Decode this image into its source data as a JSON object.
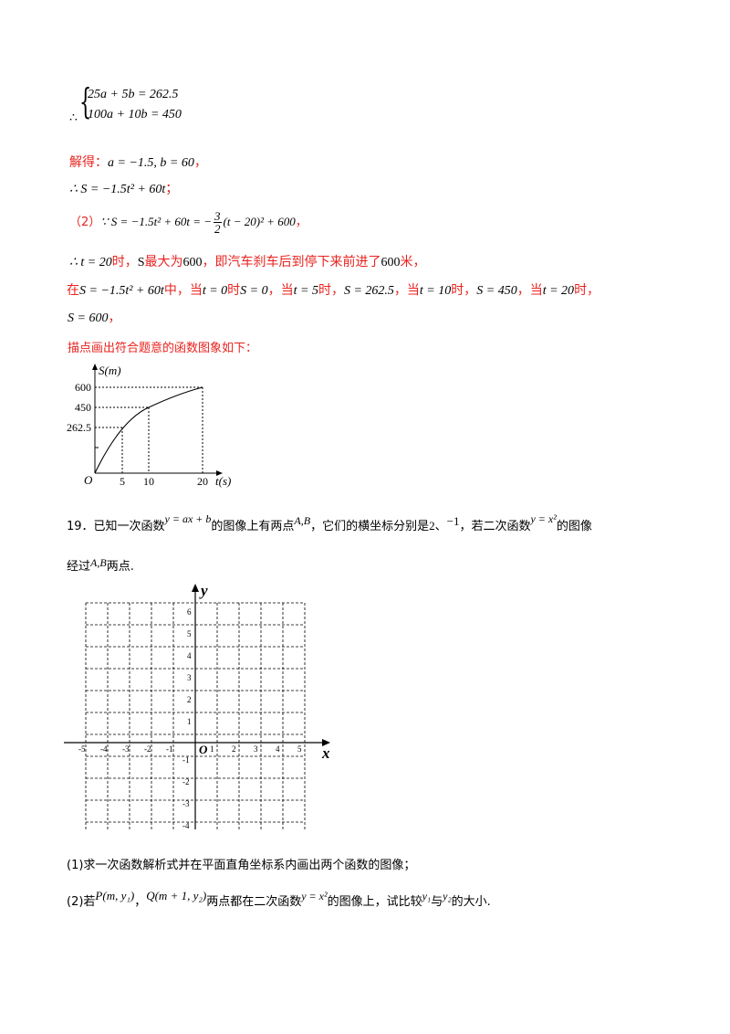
{
  "system": {
    "therefore": "∴",
    "eq1": "25a + 5b = 262.5",
    "eq2": "100a + 10b = 450"
  },
  "solve": {
    "label": "解得：",
    "result": "a = −1.5, b = 60",
    "comma": "，"
  },
  "formula": {
    "text": "∴ S = −1.5t² + 60t",
    "end": "；"
  },
  "part2": {
    "label": "（2）",
    "expr_start": "∵ S = −1.5t² + 60t = −",
    "frac_num": "3",
    "frac_den": "2",
    "expr_end": "(t − 20)² + 600",
    "comma": "，"
  },
  "max_line": {
    "pre": "∴ t = 20",
    "mid1": "时，",
    "s": "S",
    "mid2": "最大为",
    "v": "600",
    "mid3": "，即汽车刹车后到停下来前进了",
    "v2": "600",
    "end": "米，"
  },
  "values_line": {
    "p1": "在",
    "e1": "S = −1.5t² + 60t",
    "p2": "中，当",
    "e2": "t = 0",
    "p3": "时",
    "e3": "S = 0",
    "p4": "，当",
    "e4": "t = 5",
    "p5": "时，",
    "e5": "S = 262.5",
    "p6": "，当",
    "e6": "t = 10",
    "p7": "时，",
    "e7": "S = 450",
    "p8": "，当",
    "e8": "t = 20",
    "p9": "时，"
  },
  "last_value": {
    "e": "S = 600",
    "end": "，"
  },
  "plot_intro": "描点画出符合题意的函数图象如下：",
  "graph1": {
    "ylabel": "S(m)",
    "xlabel": "t(s)",
    "origin": "O",
    "yticks": [
      "600",
      "450",
      "262.5"
    ],
    "xticks": [
      "5",
      "10",
      "20"
    ]
  },
  "q19": {
    "num": "19．已知一次函数",
    "f1": "y = ax + b",
    "t1": "的图像上有两点",
    "pts": "A,B",
    "t2": "，它们的横坐标分别是",
    "v1": "2",
    "sep": "、",
    "v2": "−1",
    "t3": "，若二次函数",
    "f2": "y = x²",
    "t4": "的图像",
    "line2_a": "经过",
    "line2_pts": "A,B",
    "line2_b": "两点."
  },
  "grid": {
    "xlabel": "x",
    "ylabel": "y",
    "origin": "O",
    "xticks": [
      "-5",
      "-4",
      "-3",
      "-2",
      "-1",
      "1",
      "2",
      "3",
      "4",
      "5"
    ],
    "yticks_pos": [
      "1",
      "2",
      "3",
      "4",
      "5",
      "6"
    ],
    "yticks_neg": [
      "-1",
      "-2",
      "-3",
      "-4"
    ]
  },
  "sub1": "(1)求一次函数解析式并在平面直角坐标系内画出两个函数的图像；",
  "sub2": {
    "pre": "(2)若",
    "P": "P(m, y₁)",
    "sep": "，",
    "Q": "Q(m + 1, y₂)",
    "t1": "两点都在二次函数",
    "f": "y = x²",
    "t2": "的图像上，试比较",
    "y1": "y₁",
    "t3": "与",
    "y2": "y₂",
    "t4": "的大小."
  }
}
